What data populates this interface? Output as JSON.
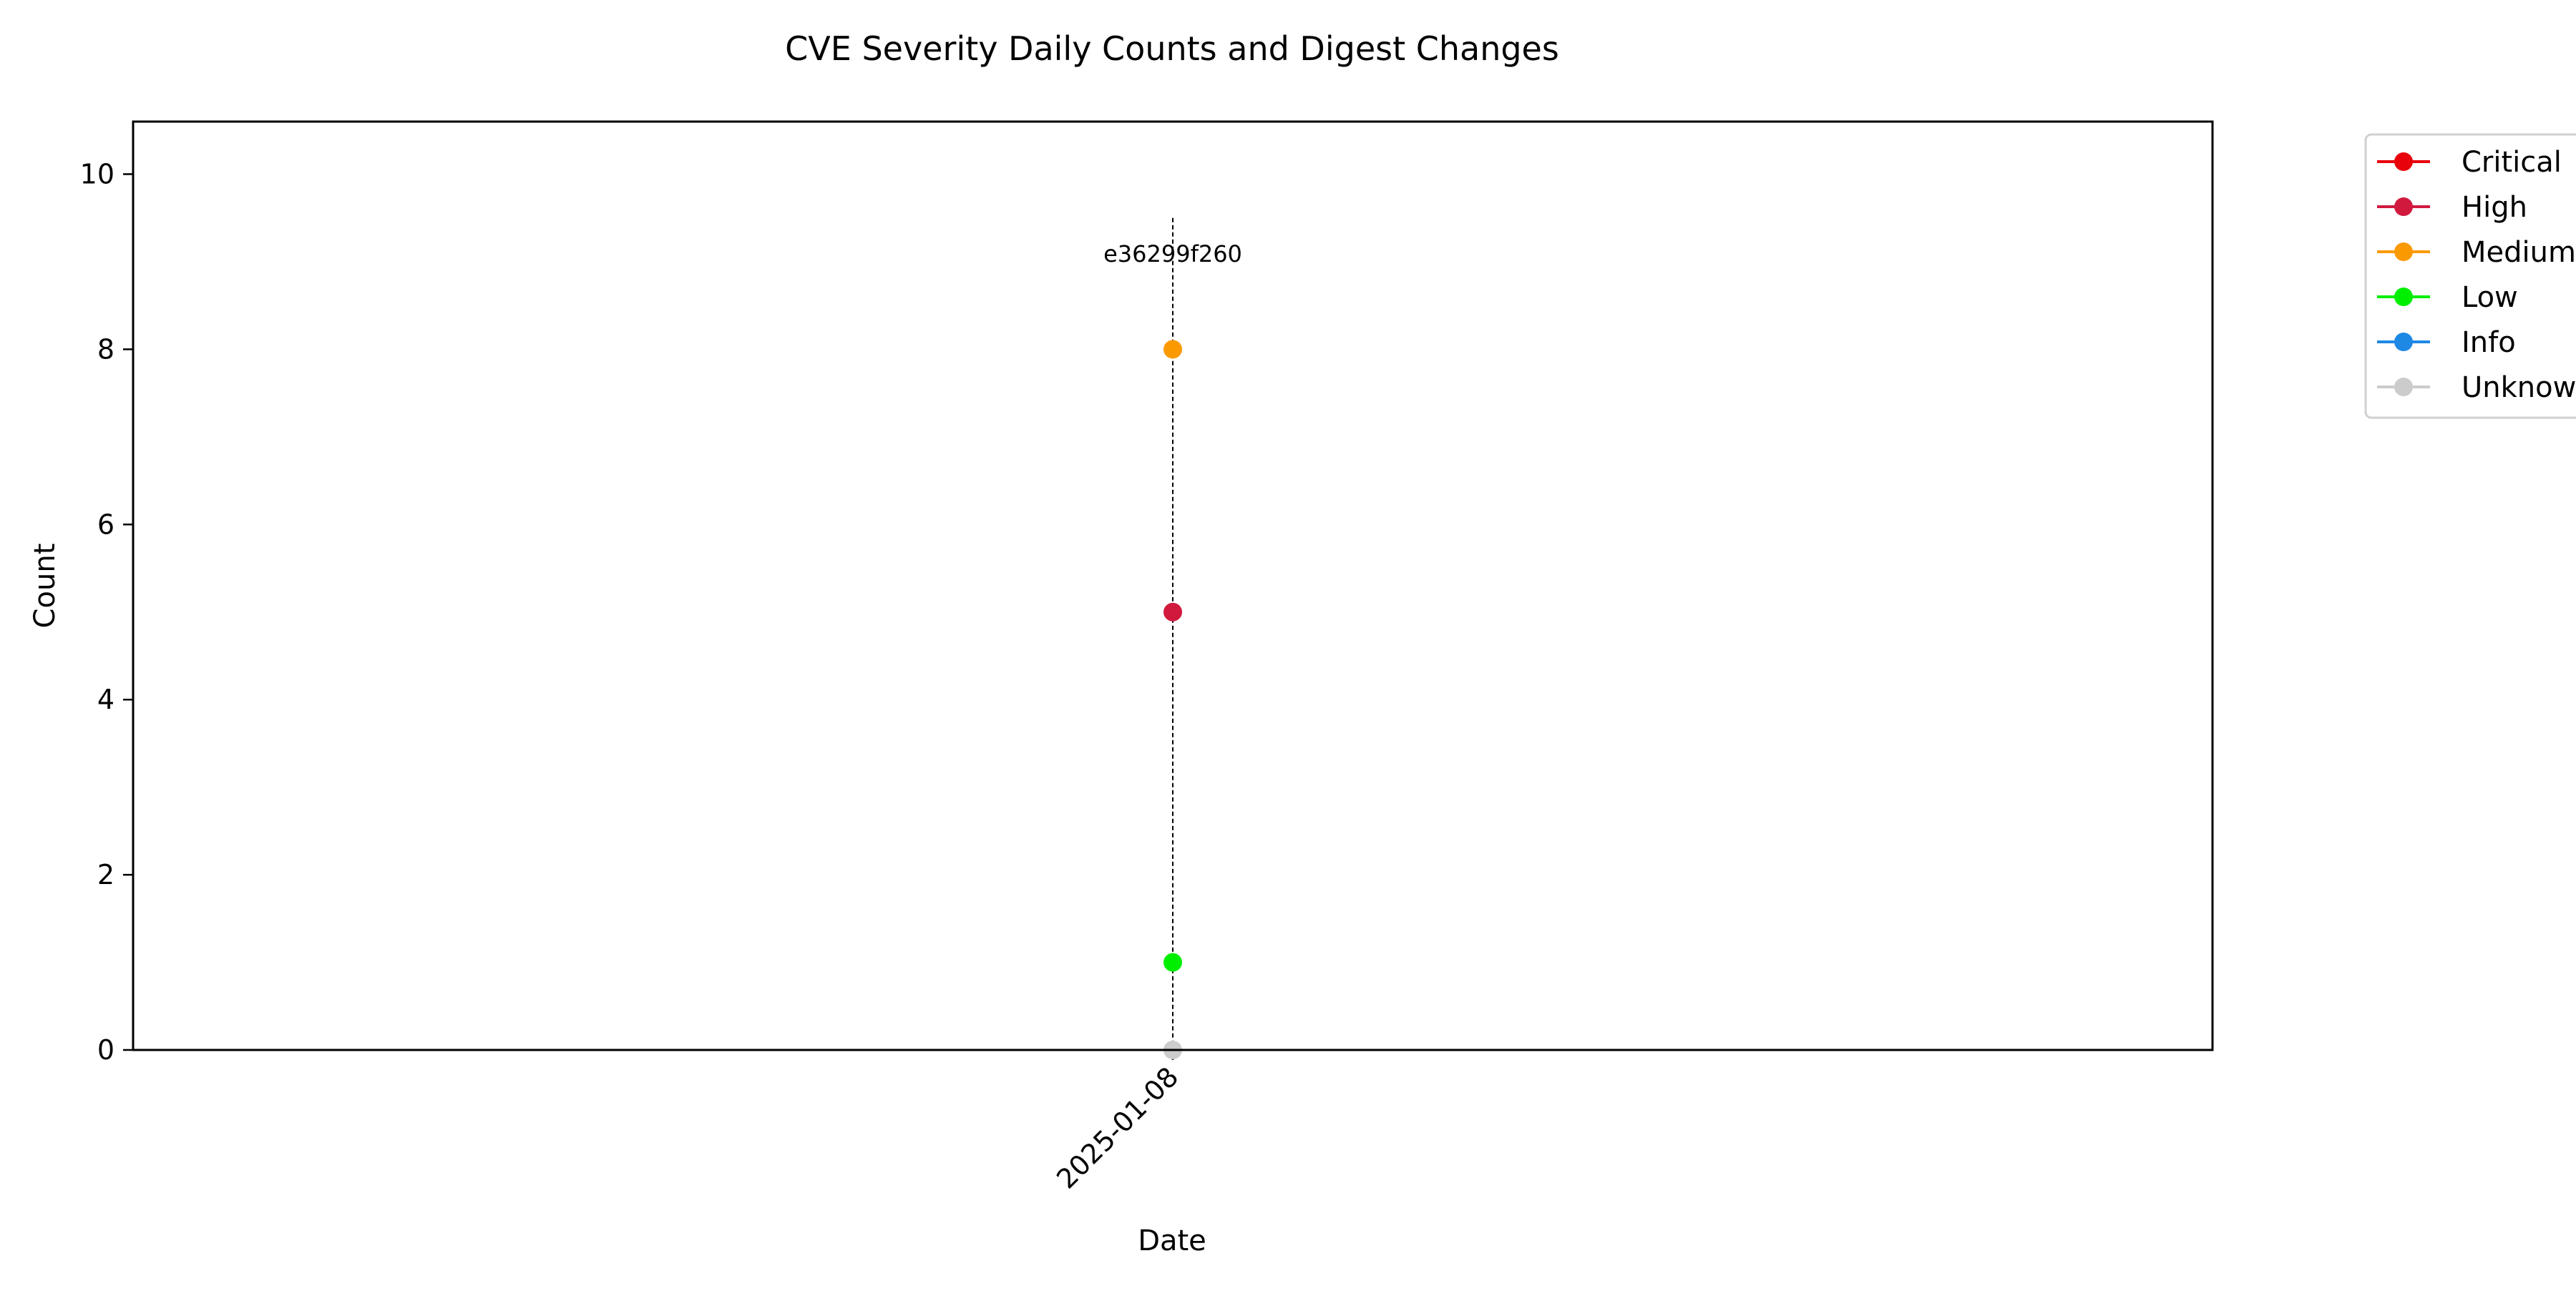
{
  "chart_data": {
    "type": "scatter",
    "title": "CVE Severity Daily Counts and Digest Changes",
    "xlabel": "Date",
    "ylabel": "Count",
    "x": [
      "2025-01-08"
    ],
    "ylim": [
      0,
      10.6
    ],
    "yticks": [
      0,
      2,
      4,
      6,
      8,
      10
    ],
    "grid": false,
    "legend_position": "outside-top-right",
    "series": [
      {
        "name": "Critical",
        "color": "#e8000b",
        "values": [
          null
        ]
      },
      {
        "name": "High",
        "color": "#d1193e",
        "values": [
          5
        ]
      },
      {
        "name": "Medium",
        "color": "#fb9a00",
        "values": [
          8
        ]
      },
      {
        "name": "Low",
        "color": "#00ee00",
        "values": [
          1
        ]
      },
      {
        "name": "Info",
        "color": "#1e88e5",
        "values": [
          null
        ]
      },
      {
        "name": "Unknown",
        "color": "#cccccc",
        "values": [
          0
        ]
      }
    ],
    "digest_markers": [
      {
        "x": "2025-01-08",
        "label": "e36299f260"
      }
    ]
  }
}
